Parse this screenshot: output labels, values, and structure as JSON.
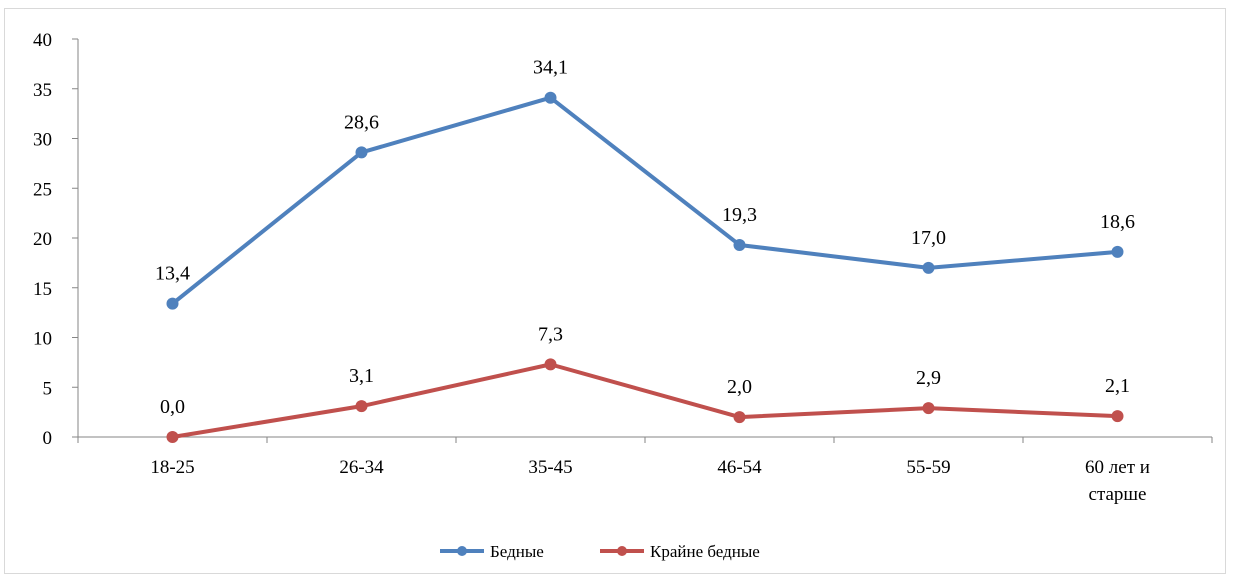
{
  "chart_data": {
    "type": "line",
    "title": "",
    "xlabel": "",
    "ylabel": "",
    "categories": [
      "18-25",
      "26-34",
      "35-45",
      "46-54",
      "55-59",
      "60 лет  и старше"
    ],
    "category_lines": [
      [
        "18-25"
      ],
      [
        "26-34"
      ],
      [
        "35-45"
      ],
      [
        "46-54"
      ],
      [
        "55-59"
      ],
      [
        "60 лет  и",
        "старше"
      ]
    ],
    "ylim": [
      0,
      40
    ],
    "yticks": [
      "0",
      "5",
      "10",
      "15",
      "20",
      "25",
      "30",
      "35",
      "40"
    ],
    "grid": false,
    "legend_position": "bottom",
    "series": [
      {
        "name": "Бедные",
        "color": "#4f81bd",
        "values": [
          13.4,
          28.6,
          34.1,
          19.3,
          17.0,
          18.6
        ],
        "labels": [
          "13,4",
          "28,6",
          "34,1",
          "19,3",
          "17,0",
          "18,6"
        ]
      },
      {
        "name": "Крайне бедные",
        "color": "#c0504d",
        "values": [
          0.0,
          3.1,
          7.3,
          2.0,
          2.9,
          2.1
        ],
        "labels": [
          "0,0",
          "3,1",
          "7,3",
          "2,0",
          "2,9",
          "2,1"
        ]
      }
    ]
  }
}
